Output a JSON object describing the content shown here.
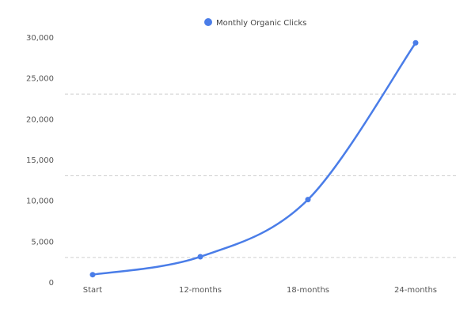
{
  "chart_data": {
    "type": "line",
    "categories": [
      "Start",
      "12-months",
      "18-months",
      "24-months"
    ],
    "series": [
      {
        "name": "Monthly Organic Clicks",
        "values": [
          900,
          3100,
          10100,
          29300
        ]
      }
    ],
    "ylim": [
      0,
      30000
    ],
    "yticks": [
      0,
      5000,
      10000,
      15000,
      20000,
      25000,
      30000
    ],
    "ytick_labels": [
      "0",
      "5,000",
      "10,000",
      "15,000",
      "20,000",
      "25,000",
      "30,000"
    ],
    "grid": true,
    "legend_position": "top-center",
    "colors": {
      "series": "#4a7de8",
      "grid": "#cfcfcf",
      "text": "#555555"
    }
  }
}
